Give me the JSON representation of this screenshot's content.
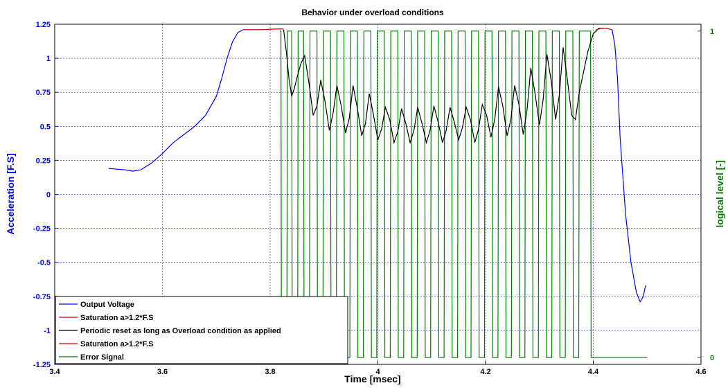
{
  "chart_data": {
    "type": "line",
    "title": "Behavior under overload conditions",
    "xlabel": "Time [msec]",
    "ylabel": "Acceleration [F.S]",
    "ylabel_right": "logical level [-]",
    "xlim": [
      3.4,
      4.6
    ],
    "ylim": [
      -1.25,
      1.25
    ],
    "ylim_right": [
      0,
      1
    ],
    "x_ticks": [
      "3.4",
      "3.6",
      "3.8",
      "4",
      "4.2",
      "4.4",
      "4.6"
    ],
    "y_ticks": [
      "-1.25",
      "-1",
      "-0.75",
      "-0.5",
      "-0.25",
      "0",
      "0.25",
      "0.5",
      "0.75",
      "1",
      "1.25"
    ],
    "y_ticks_right": [
      "0",
      "1"
    ],
    "grid": true,
    "legend_position": "bottom-left",
    "series": [
      {
        "name": "Output Voltage",
        "color": "#0000ff",
        "axis": "left",
        "x": [
          3.5,
          3.53,
          3.545,
          3.56,
          3.58,
          3.6,
          3.62,
          3.64,
          3.66,
          3.68,
          3.7,
          3.71,
          3.72,
          3.73,
          3.74,
          3.75
        ],
        "y": [
          0.19,
          0.18,
          0.17,
          0.18,
          0.23,
          0.3,
          0.38,
          0.44,
          0.5,
          0.58,
          0.72,
          0.85,
          1.0,
          1.12,
          1.19,
          1.21
        ]
      },
      {
        "name": "Saturation a>1.2*F.S",
        "color": "#cc0000",
        "axis": "left",
        "x": [
          3.75,
          3.78,
          3.81,
          3.825
        ],
        "y": [
          1.21,
          1.21,
          1.215,
          1.215
        ]
      },
      {
        "name": "Periodic reset as long as Overload condition as applied",
        "color": "#000000",
        "axis": "left",
        "x": [
          3.825,
          3.83,
          3.835,
          3.84,
          3.845,
          3.85,
          3.857,
          3.864,
          3.872,
          3.88,
          3.887,
          3.894,
          3.902,
          3.91,
          3.917,
          3.924,
          3.932,
          3.94,
          3.947,
          3.954,
          3.962,
          3.97,
          3.977,
          3.984,
          3.992,
          4.0,
          4.007,
          4.014,
          4.022,
          4.03,
          4.037,
          4.044,
          4.052,
          4.06,
          4.067,
          4.074,
          4.082,
          4.09,
          4.097,
          4.104,
          4.112,
          4.12,
          4.127,
          4.134,
          4.142,
          4.15,
          4.157,
          4.164,
          4.172,
          4.18,
          4.187,
          4.194,
          4.202,
          4.21,
          4.217,
          4.224,
          4.232,
          4.24,
          4.247,
          4.254,
          4.262,
          4.27,
          4.277,
          4.284,
          4.292,
          4.3,
          4.307,
          4.314,
          4.322,
          4.33,
          4.337,
          4.344,
          4.352,
          4.36,
          4.367,
          4.374,
          4.382,
          4.39,
          4.4,
          4.41,
          4.42
        ],
        "y": [
          1.21,
          1.05,
          0.85,
          0.72,
          0.78,
          0.86,
          0.96,
          1.02,
          0.82,
          0.58,
          0.65,
          0.84,
          0.68,
          0.47,
          0.6,
          0.8,
          0.65,
          0.45,
          0.56,
          0.8,
          0.63,
          0.43,
          0.52,
          0.74,
          0.58,
          0.4,
          0.48,
          0.64,
          0.55,
          0.38,
          0.46,
          0.63,
          0.52,
          0.38,
          0.47,
          0.64,
          0.52,
          0.38,
          0.47,
          0.65,
          0.53,
          0.38,
          0.47,
          0.64,
          0.53,
          0.4,
          0.49,
          0.64,
          0.55,
          0.38,
          0.48,
          0.66,
          0.58,
          0.42,
          0.55,
          0.79,
          0.65,
          0.43,
          0.55,
          0.8,
          0.66,
          0.44,
          0.62,
          0.93,
          0.74,
          0.51,
          0.7,
          1.03,
          0.83,
          0.55,
          0.73,
          1.08,
          0.84,
          0.58,
          0.55,
          0.75,
          0.9,
          1.05,
          1.18,
          1.22,
          1.22
        ]
      },
      {
        "name": "Saturation a>1.2*F.S",
        "color": "#cc0000",
        "axis": "left",
        "x": [
          4.405,
          4.415,
          4.425,
          4.435
        ],
        "y": [
          1.21,
          1.22,
          1.22,
          1.21
        ]
      },
      {
        "name": "Output Voltage",
        "color": "#0000ff",
        "axis": "left",
        "legend": false,
        "x": [
          4.435,
          4.44,
          4.445,
          4.45,
          4.46,
          4.47,
          4.48,
          4.487,
          4.493,
          4.497
        ],
        "y": [
          1.21,
          1.1,
          0.85,
          0.4,
          -0.15,
          -0.5,
          -0.72,
          -0.79,
          -0.75,
          -0.67
        ]
      },
      {
        "name": "Error Signal",
        "color": "#007f00",
        "axis": "right",
        "pulse_times": [
          3.82,
          3.84,
          3.862,
          3.887,
          3.912,
          3.937,
          3.962,
          3.987,
          4.012,
          4.037,
          4.062,
          4.087,
          4.112,
          4.137,
          4.162,
          4.187,
          4.212,
          4.237,
          4.262,
          4.287,
          4.312,
          4.337,
          4.362,
          4.395
        ],
        "pulse_width": 0.011,
        "x_end": 4.5,
        "low": 0,
        "high": 1
      }
    ]
  }
}
